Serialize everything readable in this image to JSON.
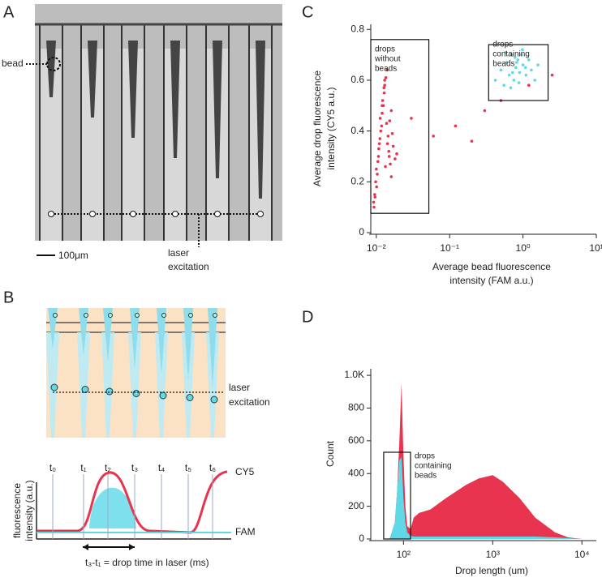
{
  "panels": {
    "A": {
      "letter": "A",
      "bead_label": "bead",
      "scale_bar": "100μm",
      "laser_label": [
        "laser",
        "excitation"
      ]
    },
    "B": {
      "letter": "B",
      "laser_label": [
        "laser",
        "excitation"
      ],
      "times": [
        "t₀",
        "t₁",
        "t₂",
        "t₃",
        "t₄",
        "t₅",
        "t₆"
      ],
      "y_label": [
        "fluorescence",
        "intensity (a.u.)"
      ],
      "cy5": "CY5",
      "fam": "FAM",
      "duration": "t₃-t₁ = drop time in laser (ms)"
    },
    "C": {
      "letter": "C"
    },
    "D": {
      "letter": "D"
    }
  },
  "chart_data": [
    {
      "type": "scatter",
      "log_x": true,
      "x_label": [
        "Average bead fluorescence",
        "intensity (FAM a.u.)"
      ],
      "y_label": [
        "Average drop fluorescence",
        "intensity (CY5 a.u.)"
      ],
      "xlim": [
        0.0084,
        10
      ],
      "ylim": [
        0,
        0.82
      ],
      "xticks": [
        {
          "value": 0.01,
          "label": "10⁻²"
        },
        {
          "value": 0.1,
          "label": "10⁻¹"
        },
        {
          "value": 1,
          "label": "10⁰"
        },
        {
          "value": 10,
          "label": "10¹"
        }
      ],
      "yticks": [
        0,
        0.2,
        0.4,
        0.6,
        0.8
      ],
      "series": [
        {
          "color": "#e8344e",
          "x": [
            0.0092,
            0.0098,
            0.0105,
            0.011,
            0.0118,
            0.0125,
            0.013,
            0.014,
            0.015,
            0.016,
            0.0095,
            0.01,
            0.0108,
            0.0115,
            0.012,
            0.0128,
            0.0135,
            0.0145,
            0.0155,
            0.017,
            0.0093,
            0.0101,
            0.0107,
            0.0113,
            0.0122,
            0.013,
            0.0138,
            0.0148,
            0.016,
            0.018,
            0.0096,
            0.0103,
            0.0112,
            0.012,
            0.0127,
            0.0133,
            0.0142,
            0.0152,
            0.0165,
            0.019,
            0.03,
            0.06,
            0.12,
            0.2,
            0.3,
            0.5,
            1.2,
            2.5
          ],
          "values": [
            0.12,
            0.2,
            0.28,
            0.35,
            0.42,
            0.5,
            0.58,
            0.64,
            0.3,
            0.22,
            0.15,
            0.25,
            0.33,
            0.4,
            0.47,
            0.55,
            0.61,
            0.38,
            0.27,
            0.34,
            0.1,
            0.18,
            0.3,
            0.45,
            0.52,
            0.6,
            0.43,
            0.32,
            0.48,
            0.29,
            0.14,
            0.23,
            0.37,
            0.5,
            0.57,
            0.26,
            0.35,
            0.44,
            0.39,
            0.31,
            0.45,
            0.38,
            0.42,
            0.36,
            0.48,
            0.52,
            0.58,
            0.62
          ]
        },
        {
          "color": "#5fd8e8",
          "x": [
            0.42,
            0.5,
            0.55,
            0.6,
            0.65,
            0.7,
            0.75,
            0.8,
            0.85,
            0.9,
            0.95,
            1.0,
            1.1,
            1.2,
            1.3,
            1.45,
            1.6,
            0.58,
            0.68,
            0.78,
            0.88,
            0.98,
            1.08,
            0.72,
            0.82
          ],
          "values": [
            0.6,
            0.64,
            0.58,
            0.67,
            0.62,
            0.7,
            0.6,
            0.65,
            0.68,
            0.63,
            0.7,
            0.66,
            0.62,
            0.68,
            0.64,
            0.6,
            0.66,
            0.71,
            0.57,
            0.69,
            0.59,
            0.72,
            0.65,
            0.63,
            0.67
          ]
        }
      ],
      "boxes": [
        {
          "label": [
            "drops",
            "without",
            "beads"
          ],
          "x": [
            0.0084,
            0.052
          ],
          "y": [
            0.076,
            0.76
          ]
        },
        {
          "label": [
            "drops",
            "containing",
            "beads"
          ],
          "x": [
            0.34,
            2.2
          ],
          "y": [
            0.52,
            0.74
          ]
        }
      ]
    },
    {
      "type": "area",
      "log_x": true,
      "x_label": "Drop length (um)",
      "y_label": "Count",
      "xlim": [
        43,
        14500
      ],
      "ylim": [
        0,
        1040
      ],
      "xticks": [
        {
          "value": 100,
          "label": "10²"
        },
        {
          "value": 1000,
          "label": "10³"
        },
        {
          "value": 10000,
          "label": "10⁴"
        }
      ],
      "yticks": [
        0,
        200,
        400,
        600,
        800,
        {
          "value": 1000,
          "label": "1.0K"
        }
      ],
      "x": [
        70,
        80,
        85,
        90,
        95,
        100,
        105,
        110,
        120,
        130,
        150,
        200,
        300,
        500,
        700,
        1000,
        1300,
        2000,
        3000,
        5000,
        7000,
        10000
      ],
      "series": [
        {
          "color": "#e8344e",
          "values": [
            0,
            100,
            300,
            600,
            950,
            500,
            200,
            80,
            60,
            130,
            160,
            180,
            250,
            330,
            370,
            390,
            350,
            250,
            130,
            40,
            10,
            0
          ]
        },
        {
          "color": "#5fd8e8",
          "values": [
            0,
            100,
            300,
            480,
            500,
            250,
            100,
            40,
            20,
            15,
            15,
            15,
            15,
            15,
            15,
            15,
            15,
            15,
            15,
            10,
            5,
            0
          ]
        }
      ],
      "boxes": [
        {
          "label": [
            "drops",
            "containing",
            "beads"
          ],
          "x": [
            60,
            120
          ],
          "y": [
            0,
            530
          ]
        }
      ]
    }
  ]
}
